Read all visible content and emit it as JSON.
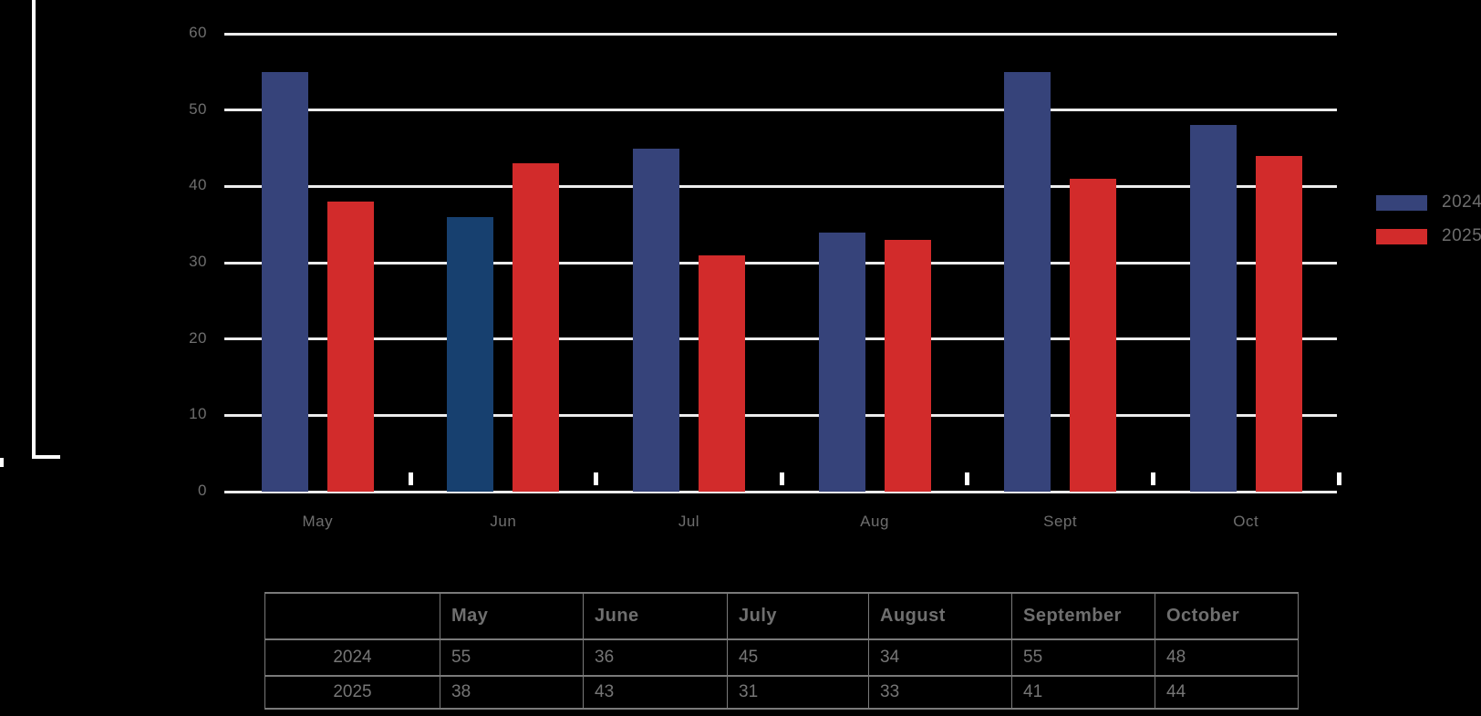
{
  "chart_data": {
    "type": "bar",
    "title": "",
    "categories": [
      "May",
      "Jun",
      "Jul",
      "Aug",
      "Sept",
      "Oct"
    ],
    "series": [
      {
        "name": "2024",
        "color": "#36437A",
        "values": [
          55,
          36,
          45,
          34,
          55,
          48
        ]
      },
      {
        "name": "2025",
        "color": "#D22B2B",
        "values": [
          38,
          43,
          31,
          33,
          41,
          44
        ]
      }
    ],
    "highlight": {
      "series": "2024",
      "category": "Jun",
      "color": "#17406F"
    },
    "ylim": [
      0,
      60
    ],
    "yticks": [
      0,
      10,
      20,
      30,
      40,
      50,
      60
    ],
    "grid": true,
    "grid_color": "#ECECEC",
    "axis_text_color": "#6E6E6E",
    "background": "#000000",
    "legend_position": "right"
  },
  "legend": {
    "items": [
      {
        "label": "2024",
        "color": "#36437A"
      },
      {
        "label": "2025",
        "color": "#D22B2B"
      }
    ]
  },
  "table": {
    "headers": [
      "",
      "May",
      "June",
      "July",
      "August",
      "September",
      "October"
    ],
    "rows": [
      {
        "label": "2024",
        "values": [
          "55",
          "36",
          "45",
          "34",
          "55",
          "48"
        ]
      },
      {
        "label": "2025",
        "values": [
          "38",
          "43",
          "31",
          "33",
          "41",
          "44"
        ]
      }
    ]
  }
}
